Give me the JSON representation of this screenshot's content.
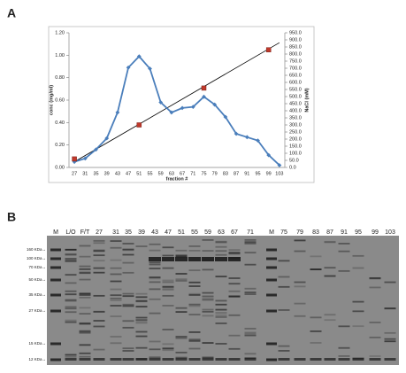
{
  "panel_labels": [
    "A",
    "B"
  ],
  "chart_data": {
    "type": "line",
    "categories": [
      "27",
      "31",
      "35",
      "39",
      "43",
      "47",
      "51",
      "55",
      "59",
      "63",
      "67",
      "71",
      "75",
      "79",
      "83",
      "87",
      "91",
      "95",
      "99",
      "103"
    ],
    "xlabel": "fraction #",
    "ylabel": "conc (mg/ml)",
    "y2label": "NaCl (mM)",
    "series": [
      {
        "color": "#4a7ebb",
        "marker": "diamond",
        "line": true,
        "values": [
          0.05,
          0.08,
          0.16,
          0.26,
          0.49,
          0.89,
          0.99,
          0.88,
          0.58,
          0.49,
          0.53,
          0.54,
          0.63,
          0.56,
          0.45,
          0.3,
          0.27,
          0.24,
          0.11,
          0.02
        ]
      },
      {
        "color": "#c0392b",
        "marker": "square",
        "line": false,
        "axis": "y2",
        "values": [
          60,
          null,
          null,
          null,
          null,
          null,
          300,
          null,
          null,
          null,
          null,
          null,
          560,
          null,
          null,
          null,
          null,
          null,
          830,
          null
        ]
      }
    ],
    "trendline": {
      "color": "#000000",
      "axis": "y2",
      "values": [
        40,
        880
      ]
    },
    "ylim": [
      0,
      1.2
    ],
    "yticks": [
      {
        "value": 0,
        "label": "0.00"
      },
      {
        "value": 0.2,
        "label": "0.20"
      },
      {
        "value": 0.4,
        "label": "0.40"
      },
      {
        "value": 0.6,
        "label": "0.60"
      },
      {
        "value": 0.8,
        "label": "0.80"
      },
      {
        "value": 1.0,
        "label": "1.00"
      },
      {
        "value": 1.2,
        "label": "1.20"
      }
    ],
    "y2lim": [
      0,
      950
    ],
    "y2ticks": [
      {
        "value": 0,
        "label": "0.0"
      },
      {
        "value": 50,
        "label": "50.0"
      },
      {
        "value": 100,
        "label": "100.0"
      },
      {
        "value": 150,
        "label": "150.0"
      },
      {
        "value": 200,
        "label": "200.0"
      },
      {
        "value": 250,
        "label": "250.0"
      },
      {
        "value": 300,
        "label": "300.0"
      },
      {
        "value": 350,
        "label": "350.0"
      },
      {
        "value": 400,
        "label": "400.0"
      },
      {
        "value": 450,
        "label": "450.0"
      },
      {
        "value": 500,
        "label": "500.0"
      },
      {
        "value": 550,
        "label": "550.0"
      },
      {
        "value": 600,
        "label": "600.0"
      },
      {
        "value": 650,
        "label": "650.0"
      },
      {
        "value": 700,
        "label": "700.0"
      },
      {
        "value": 750,
        "label": "750.0"
      },
      {
        "value": 800,
        "label": "800.0"
      },
      {
        "value": 850,
        "label": "850.0"
      },
      {
        "value": 900,
        "label": "900.0"
      },
      {
        "value": 950,
        "label": "950.0"
      }
    ],
    "grid": false
  },
  "gel": {
    "lanes": [
      "M",
      "L/O",
      "F/T",
      "27",
      "31",
      "35",
      "39",
      "43",
      "47",
      "51",
      "55",
      "59",
      "63",
      "67",
      "71",
      "M",
      "75",
      "79",
      "83",
      "87",
      "91",
      "95",
      "99",
      "103"
    ],
    "markers": [
      "160 KDa→",
      "100 KDa→",
      "70 KDa→",
      "50 KDa→",
      "35 KDa→",
      "27 KDa→",
      "15 KDa→",
      "12 KDa→"
    ]
  }
}
